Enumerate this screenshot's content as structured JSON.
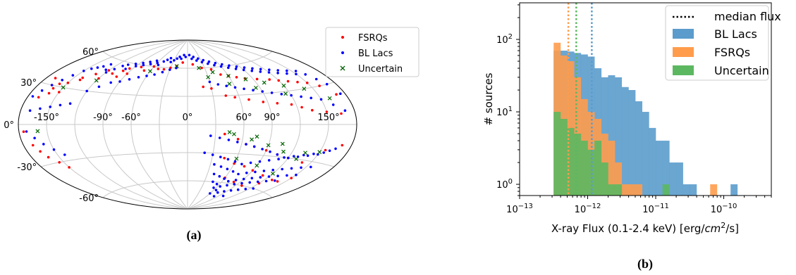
{
  "chart_data": [
    {
      "panel": "(a)",
      "type": "scatter",
      "projection": "aitoff",
      "caption": "(a)",
      "lon_tick_labels": [
        "-150°",
        "-90°",
        "-60°",
        "0°",
        "60°",
        "90°",
        "150°"
      ],
      "lat_tick_labels": [
        "60°",
        "30°",
        "0°",
        "-30°",
        "-60°"
      ],
      "lon_ticks": [
        -150,
        -90,
        -60,
        0,
        60,
        90,
        150
      ],
      "lat_ticks": [
        60,
        30,
        0,
        -30,
        -60
      ],
      "grid": true,
      "legend_position": "top-right",
      "series": [
        {
          "name": "FSRQs",
          "marker": "dot",
          "color": "#ff0000",
          "lon": [
            -170,
            -165,
            -160,
            -158,
            -150,
            -140,
            -130,
            -120,
            -110,
            -100,
            -95,
            -80,
            -70,
            -60,
            -40,
            -20,
            -10,
            10,
            25,
            40,
            50,
            60,
            70,
            80,
            95,
            110,
            120,
            130,
            140,
            150,
            160,
            170,
            -168,
            -160,
            -150,
            -140,
            -120,
            -100,
            -90,
            -70,
            -50,
            -30,
            20,
            30,
            45,
            55,
            70,
            85,
            100,
            115,
            125,
            135,
            150,
            165,
            -175,
            -170,
            -166,
            -162,
            -155,
            -150,
            40,
            55,
            65,
            75,
            90,
            105,
            120,
            140,
            155,
            170,
            45,
            60,
            75,
            90,
            110,
            130,
            150,
            60,
            80,
            100,
            120,
            140
          ],
          "lat": [
            35,
            30,
            28,
            32,
            34,
            40,
            45,
            50,
            48,
            52,
            55,
            58,
            62,
            60,
            58,
            62,
            66,
            64,
            60,
            58,
            52,
            50,
            48,
            46,
            44,
            42,
            40,
            38,
            36,
            34,
            30,
            22,
            20,
            24,
            26,
            38,
            42,
            46,
            50,
            55,
            58,
            60,
            40,
            38,
            30,
            28,
            25,
            22,
            20,
            18,
            15,
            12,
            10,
            8,
            -5,
            -15,
            -20,
            -25,
            -30,
            -35,
            -10,
            -15,
            -20,
            -22,
            -25,
            -28,
            -30,
            -32,
            -20,
            -15,
            -35,
            -40,
            -42,
            -45,
            -48,
            -50,
            -45,
            -55,
            -58,
            -60,
            -55,
            -50
          ]
        },
        {
          "name": "BL Lacs",
          "marker": "dot",
          "color": "#0000ff",
          "lon": [
            -175,
            -170,
            -165,
            -160,
            -155,
            -150,
            -145,
            -140,
            -135,
            -130,
            -125,
            -120,
            -115,
            -110,
            -105,
            -100,
            -95,
            -90,
            -85,
            -80,
            -75,
            -70,
            -65,
            -60,
            -55,
            -50,
            -45,
            -40,
            -35,
            -30,
            -25,
            -20,
            -15,
            -10,
            -5,
            5,
            10,
            15,
            20,
            25,
            30,
            35,
            40,
            45,
            50,
            55,
            60,
            65,
            70,
            75,
            80,
            85,
            90,
            95,
            100,
            105,
            110,
            115,
            120,
            125,
            130,
            135,
            140,
            145,
            150,
            155,
            160,
            165,
            170,
            175,
            -170,
            -160,
            -150,
            -140,
            -130,
            -120,
            -110,
            -100,
            -90,
            -80,
            -70,
            -60,
            -50,
            -40,
            -30,
            -20,
            30,
            40,
            50,
            60,
            70,
            80,
            90,
            100,
            110,
            120,
            130,
            140,
            150,
            160,
            170,
            -172,
            -165,
            -158,
            -150,
            -142,
            25,
            35,
            45,
            55,
            65,
            75,
            85,
            95,
            105,
            115,
            125,
            135,
            145,
            155,
            165,
            20,
            30,
            40,
            50,
            60,
            70,
            80,
            90,
            100,
            110,
            120,
            130,
            140,
            150,
            160,
            35,
            45,
            55,
            65,
            75,
            85,
            95,
            105,
            115,
            125,
            135,
            145,
            155,
            40,
            50,
            60,
            70,
            80,
            90,
            100,
            110,
            120,
            130,
            140,
            150,
            45,
            55,
            65,
            75,
            85,
            95,
            105,
            115,
            125,
            135,
            55,
            65,
            75,
            85,
            95,
            105,
            115,
            125,
            60,
            80,
            100
          ],
          "lat": [
            20,
            25,
            30,
            35,
            40,
            45,
            48,
            50,
            52,
            55,
            50,
            48,
            52,
            56,
            58,
            54,
            60,
            58,
            62,
            60,
            64,
            62,
            66,
            64,
            62,
            66,
            68,
            70,
            66,
            68,
            70,
            72,
            70,
            74,
            72,
            74,
            70,
            72,
            68,
            70,
            66,
            68,
            64,
            66,
            62,
            64,
            60,
            62,
            58,
            60,
            56,
            58,
            54,
            56,
            52,
            54,
            50,
            52,
            48,
            50,
            46,
            48,
            44,
            46,
            42,
            44,
            40,
            35,
            30,
            22,
            10,
            12,
            14,
            16,
            18,
            30,
            35,
            40,
            42,
            45,
            48,
            50,
            52,
            55,
            58,
            60,
            45,
            42,
            40,
            38,
            36,
            34,
            32,
            30,
            28,
            26,
            24,
            22,
            20,
            15,
            10,
            -5,
            -10,
            -15,
            -20,
            -25,
            -12,
            -14,
            -16,
            -18,
            -20,
            -22,
            -24,
            -26,
            -28,
            -30,
            -28,
            -26,
            -24,
            -22,
            -18,
            -30,
            -32,
            -34,
            -36,
            -38,
            -40,
            -38,
            -36,
            -34,
            -32,
            -30,
            -28,
            -26,
            -24,
            -20,
            -42,
            -44,
            -46,
            -48,
            -50,
            -48,
            -46,
            -44,
            -42,
            -40,
            -38,
            -36,
            -34,
            -52,
            -54,
            -56,
            -58,
            -56,
            -54,
            -52,
            -50,
            -48,
            -46,
            -44,
            -42,
            -60,
            -62,
            -64,
            -62,
            -60,
            -58,
            -56,
            -54,
            -52,
            -50,
            -66,
            -68,
            -70,
            -68,
            -66,
            -64,
            -62,
            -60,
            -72,
            -74,
            -72
          ]
        },
        {
          "name": "Uncertain",
          "marker": "x",
          "color": "#006400",
          "lon": [
            -150,
            -120,
            -60,
            -20,
            20,
            40,
            60,
            80,
            100,
            120,
            140,
            160,
            -160,
            50,
            70,
            90,
            110,
            130,
            150,
            60,
            90,
            120,
            45,
            75,
            105,
            135,
            30,
            55,
            85,
            115
          ],
          "lat": [
            30,
            40,
            55,
            62,
            60,
            55,
            50,
            45,
            40,
            35,
            30,
            20,
            -5,
            -10,
            -15,
            -20,
            -25,
            -30,
            -22,
            -35,
            -40,
            -45,
            -8,
            -12,
            -18,
            -24,
            50,
            42,
            36,
            28
          ]
        }
      ]
    },
    {
      "panel": "(b)",
      "type": "histogram",
      "caption": "(b)",
      "xlabel": "X-ray Flux (0.1-2.4 keV) [erg/cm^2/s]",
      "xlabel_parts": {
        "pre": "X-ray Flux (0.1-2.4 keV) [erg/",
        "italic": "cm",
        "sup": "2",
        "post": "/s]"
      },
      "ylabel": "# sources",
      "xscale": "log",
      "yscale": "log",
      "xlim": [
        1e-13,
        5e-10
      ],
      "ylim": [
        0.7,
        320
      ],
      "x_ticks": [
        1e-13,
        1e-12,
        1e-11,
        1e-10
      ],
      "x_tick_labels": [
        {
          "base": "10",
          "exp": "−13"
        },
        {
          "base": "10",
          "exp": "−12"
        },
        {
          "base": "10",
          "exp": "−11"
        },
        {
          "base": "10",
          "exp": "−10"
        }
      ],
      "y_ticks": [
        1,
        10,
        100
      ],
      "y_tick_labels": [
        {
          "base": "10",
          "exp": "0"
        },
        {
          "base": "10",
          "exp": "1"
        },
        {
          "base": "10",
          "exp": "2"
        }
      ],
      "legend_position": "top-right",
      "median_label": "median flux",
      "bin_edges_log10": [
        -12.5,
        -12.4,
        -12.3,
        -12.2,
        -12.1,
        -12.0,
        -11.9,
        -11.8,
        -11.7,
        -11.6,
        -11.5,
        -11.4,
        -11.3,
        -11.2,
        -11.1,
        -11.0,
        -10.9,
        -10.8,
        -10.7,
        -10.6,
        -10.5,
        -10.4,
        -10.3,
        -10.2,
        -10.1,
        -10.0,
        -9.9,
        -9.8
      ],
      "series": [
        {
          "name": "BL Lacs",
          "color": "#5b9ccc",
          "median": 1.15e-12,
          "counts": [
            70,
            70,
            68,
            65,
            62,
            58,
            40,
            30,
            32,
            30,
            22,
            20,
            14,
            10,
            6,
            4,
            4,
            2,
            2,
            1,
            1,
            0,
            0,
            0,
            0,
            0,
            1
          ]
        },
        {
          "name": "FSRQs",
          "color": "#ff9c4c",
          "median": 5.2e-13,
          "counts": [
            90,
            60,
            50,
            30,
            15,
            10,
            8,
            5,
            4,
            2,
            1,
            1,
            1,
            0,
            0,
            0,
            0,
            0,
            0,
            0,
            0,
            0,
            0,
            1,
            0,
            0,
            0
          ]
        },
        {
          "name": "Uncertain",
          "color": "#5cb860",
          "median": 6.8e-13,
          "counts": [
            10,
            8,
            6,
            5,
            4,
            3,
            4,
            2,
            1,
            1,
            0,
            0,
            0,
            0,
            0,
            0,
            1,
            0,
            0,
            0,
            0,
            0,
            0,
            0,
            0,
            0,
            0
          ]
        }
      ]
    }
  ]
}
